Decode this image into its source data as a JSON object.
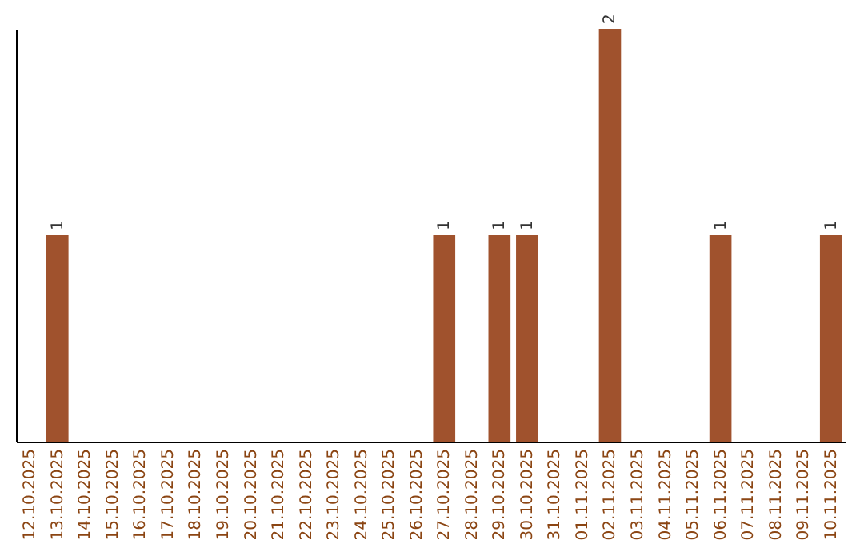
{
  "chart_data": {
    "type": "bar",
    "categories": [
      "12.10.2025",
      "13.10.2025",
      "14.10.2025",
      "15.10.2025",
      "16.10.2025",
      "17.10.2025",
      "18.10.2025",
      "19.10.2025",
      "20.10.2025",
      "21.10.2025",
      "22.10.2025",
      "23.10.2025",
      "24.10.2025",
      "25.10.2025",
      "26.10.2025",
      "27.10.2025",
      "28.10.2025",
      "29.10.2025",
      "30.10.2025",
      "31.10.2025",
      "01.11.2025",
      "02.11.2025",
      "03.11.2025",
      "04.11.2025",
      "05.11.2025",
      "06.11.2025",
      "07.11.2025",
      "08.11.2025",
      "09.11.2025",
      "10.11.2025"
    ],
    "values": [
      0,
      1,
      0,
      0,
      0,
      0,
      0,
      0,
      0,
      0,
      0,
      0,
      0,
      0,
      0,
      1,
      0,
      1,
      1,
      0,
      0,
      2,
      0,
      0,
      0,
      1,
      0,
      0,
      0,
      1
    ],
    "value_labels": [
      null,
      "1",
      null,
      null,
      null,
      null,
      null,
      null,
      null,
      null,
      null,
      null,
      null,
      null,
      null,
      "1",
      null,
      "1",
      "1",
      null,
      null,
      "2",
      null,
      null,
      null,
      "1",
      null,
      null,
      null,
      "1"
    ],
    "color": "#a0522d"
  }
}
